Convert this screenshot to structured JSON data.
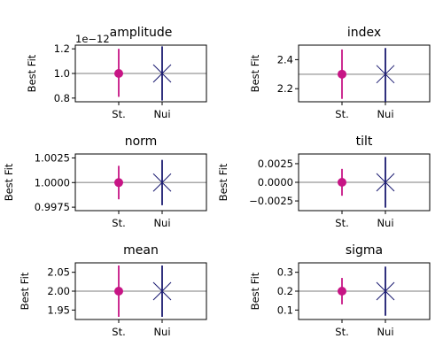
{
  "chart_data": [
    {
      "type": "scatter",
      "title": "amplitude",
      "ylabel": "Best Fit",
      "categories": [
        "St.",
        "Nui"
      ],
      "offset_label": "1e−12",
      "yticks": [
        {
          "value": 0.8,
          "label": "0.8"
        },
        {
          "value": 1.0,
          "label": "1.0"
        },
        {
          "value": 1.2,
          "label": "1.2"
        }
      ],
      "ylim": [
        0.77,
        1.23
      ],
      "reference_line": 1.0,
      "points": [
        {
          "category": "St.",
          "value": 1.0,
          "err_low": 0.19,
          "err_high": 0.2
        },
        {
          "category": "Nui",
          "value": 1.0,
          "err_low": 0.22,
          "err_high": 0.22
        }
      ]
    },
    {
      "type": "scatter",
      "title": "index",
      "ylabel": "Best Fit",
      "categories": [
        "St.",
        "Nui"
      ],
      "yticks": [
        {
          "value": 2.2,
          "label": "2.2"
        },
        {
          "value": 2.4,
          "label": "2.4"
        }
      ],
      "ylim": [
        2.11,
        2.5
      ],
      "reference_line": 2.3,
      "points": [
        {
          "category": "St.",
          "value": 2.3,
          "err_low": 0.17,
          "err_high": 0.17
        },
        {
          "category": "Nui",
          "value": 2.3,
          "err_low": 0.19,
          "err_high": 0.18
        }
      ]
    },
    {
      "type": "scatter",
      "title": "norm",
      "ylabel": "Best Fit",
      "categories": [
        "St.",
        "Nui"
      ],
      "yticks": [
        {
          "value": 0.9975,
          "label": "0.9975"
        },
        {
          "value": 1.0,
          "label": "1.0000"
        },
        {
          "value": 1.0025,
          "label": "1.0025"
        }
      ],
      "ylim": [
        0.99715,
        1.0029
      ],
      "reference_line": 1.0,
      "points": [
        {
          "category": "St.",
          "value": 1.0,
          "err_low": 0.0017,
          "err_high": 0.0017
        },
        {
          "category": "Nui",
          "value": 1.0,
          "err_low": 0.0023,
          "err_high": 0.0023
        }
      ]
    },
    {
      "type": "scatter",
      "title": "tilt",
      "ylabel": "Best Fit",
      "categories": [
        "St.",
        "Nui"
      ],
      "yticks": [
        {
          "value": 0.0025,
          "label": "0.0025"
        },
        {
          "value": 0.0,
          "label": "0.0000"
        },
        {
          "value": -0.0025,
          "label": "−0.0025"
        }
      ],
      "ylim": [
        -0.0038,
        0.0038
      ],
      "reference_line": 0.0,
      "points": [
        {
          "category": "St.",
          "value": 0.0,
          "err_low": 0.0018,
          "err_high": 0.0018
        },
        {
          "category": "Nui",
          "value": 0.0,
          "err_low": 0.0034,
          "err_high": 0.0034
        }
      ]
    },
    {
      "type": "scatter",
      "title": "mean",
      "ylabel": "Best Fit",
      "categories": [
        "St.",
        "Nui"
      ],
      "yticks": [
        {
          "value": 1.95,
          "label": "1.95"
        },
        {
          "value": 2.0,
          "label": "2.00"
        },
        {
          "value": 2.05,
          "label": "2.05"
        }
      ],
      "ylim": [
        1.925,
        2.075
      ],
      "reference_line": 2.0,
      "points": [
        {
          "category": "St.",
          "value": 2.0,
          "err_low": 0.068,
          "err_high": 0.068
        },
        {
          "category": "Nui",
          "value": 2.0,
          "err_low": 0.068,
          "err_high": 0.068
        }
      ]
    },
    {
      "type": "scatter",
      "title": "sigma",
      "ylabel": "Best Fit",
      "categories": [
        "St.",
        "Nui"
      ],
      "yticks": [
        {
          "value": 0.1,
          "label": "0.1"
        },
        {
          "value": 0.2,
          "label": "0.2"
        },
        {
          "value": 0.3,
          "label": "0.3"
        }
      ],
      "ylim": [
        0.05,
        0.35
      ],
      "reference_line": 0.2,
      "points": [
        {
          "category": "St.",
          "value": 0.2,
          "err_low": 0.07,
          "err_high": 0.07
        },
        {
          "category": "Nui",
          "value": 0.2,
          "err_low": 0.13,
          "err_high": 0.13
        }
      ]
    }
  ],
  "style": {
    "standard_color": "#c71585",
    "nuisance_color": "#191970",
    "reference_line_color": "#a9a9a9",
    "frame_color": "#000000",
    "standard_marker": "circle",
    "nuisance_marker": "x-cross"
  }
}
